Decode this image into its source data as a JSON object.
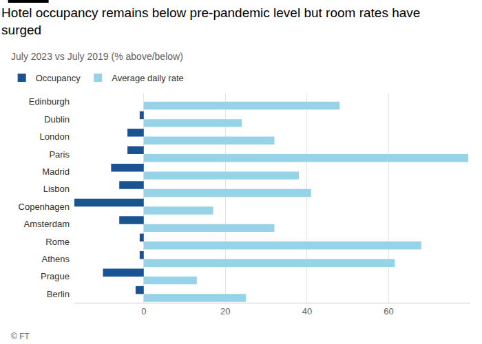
{
  "chart_data": {
    "type": "bar",
    "orientation": "horizontal",
    "title": "Hotel occupancy remains below pre-pandemic level but room rates have surged",
    "subtitle": "July 2023 vs July 2019 (% above/below)",
    "source": "© FT",
    "categories": [
      "Edinburgh",
      "Dublin",
      "London",
      "Paris",
      "Madrid",
      "Lisbon",
      "Copenhagen",
      "Amsterdam",
      "Rome",
      "Athens",
      "Prague",
      "Berlin"
    ],
    "series": [
      {
        "name": "Occupancy",
        "color": "#1a5394",
        "values": [
          0,
          -1,
          -4,
          -4,
          -8,
          -6,
          -17,
          -6,
          -1,
          -1,
          -10,
          -2
        ]
      },
      {
        "name": "Average daily rate",
        "color": "#96d3e8",
        "values": [
          48,
          24,
          32,
          79.5,
          38,
          41,
          17,
          32,
          68,
          61.5,
          13,
          25
        ]
      }
    ],
    "xlim": [
      -17,
      80
    ],
    "xticks": [
      0,
      20,
      40,
      60
    ],
    "grid": true,
    "legend": "top-left"
  }
}
